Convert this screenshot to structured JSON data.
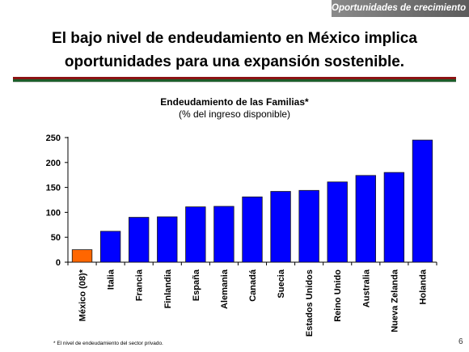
{
  "header": {
    "section_label": "Oportunidades de crecimiento"
  },
  "slide": {
    "title_line1": "El bajo nivel de endeudamiento en México implica",
    "title_line2": "oportunidades para una expansión sostenible.",
    "footnote": "* El nivel de endeudamiento del sector privado.",
    "page_number": "6"
  },
  "colors": {
    "bar_default": "#0000ff",
    "bar_highlight": "#ff6600",
    "rule_red": "#8c1414",
    "rule_green": "#1d5e2a"
  },
  "chart_data": {
    "type": "bar",
    "title": "Endeudamiento de las Familias*",
    "subtitle": "(% del ingreso disponible)",
    "xlabel": "",
    "ylabel": "",
    "ylim": [
      0,
      250
    ],
    "yticks": [
      0,
      50,
      100,
      150,
      200,
      250
    ],
    "grid": false,
    "legend": "none",
    "highlight_index": 0,
    "categories": [
      "México (08)*",
      "Italia",
      "Francia",
      "Finlandia",
      "España",
      "Alemania",
      "Canadá",
      "Suecia",
      "Estados Unidos",
      "Reino Unido",
      "Australia",
      "Nueva Zelanda",
      "Holanda"
    ],
    "values": [
      25,
      62,
      90,
      91,
      111,
      112,
      131,
      142,
      144,
      161,
      174,
      180,
      245
    ]
  }
}
